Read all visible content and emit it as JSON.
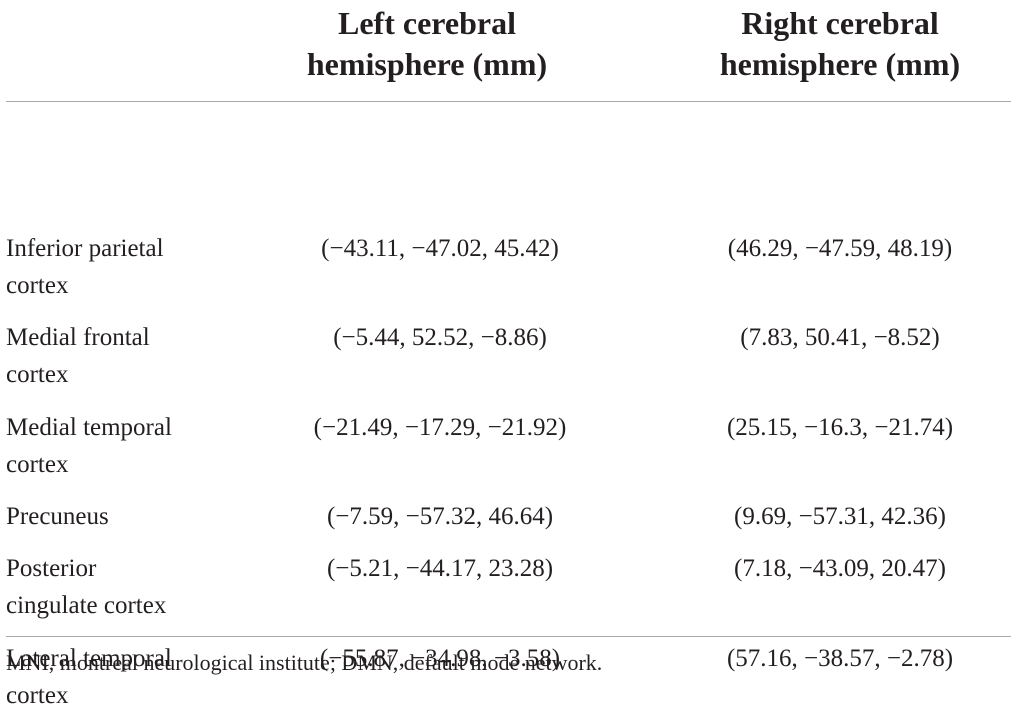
{
  "table": {
    "columns": {
      "left": "Left cerebral\nhemisphere (mm)",
      "right": "Right cerebral\nhemisphere (mm)"
    },
    "rows": [
      {
        "region": "Inferior parietal\ncortex",
        "left": "(−43.11, −47.02, 45.42)",
        "right": "(46.29, −47.59, 48.19)"
      },
      {
        "region": "Medial frontal\ncortex",
        "left": "(−5.44, 52.52, −8.86)",
        "right": "(7.83, 50.41, −8.52)"
      },
      {
        "region": "Medial temporal\ncortex",
        "left": "(−21.49, −17.29, −21.92)",
        "right": "(25.15, −16.3, −21.74)"
      },
      {
        "region": "Precuneus",
        "left": "(−7.59, −57.32, 46.64)",
        "right": "(9.69, −57.31, 42.36)"
      },
      {
        "region": "Posterior\ncingulate cortex",
        "left": "(−5.21, −44.17, 23.28)",
        "right": "(7.18, −43.09, 20.47)"
      },
      {
        "region": "Lateral temporal\ncortex",
        "left": "(−55.87, −34.98, −3.58)",
        "right": "(57.16, −38.57, −2.78)"
      }
    ],
    "footnote": "MNI, montreal neurological institute; DMN, default mode network."
  }
}
